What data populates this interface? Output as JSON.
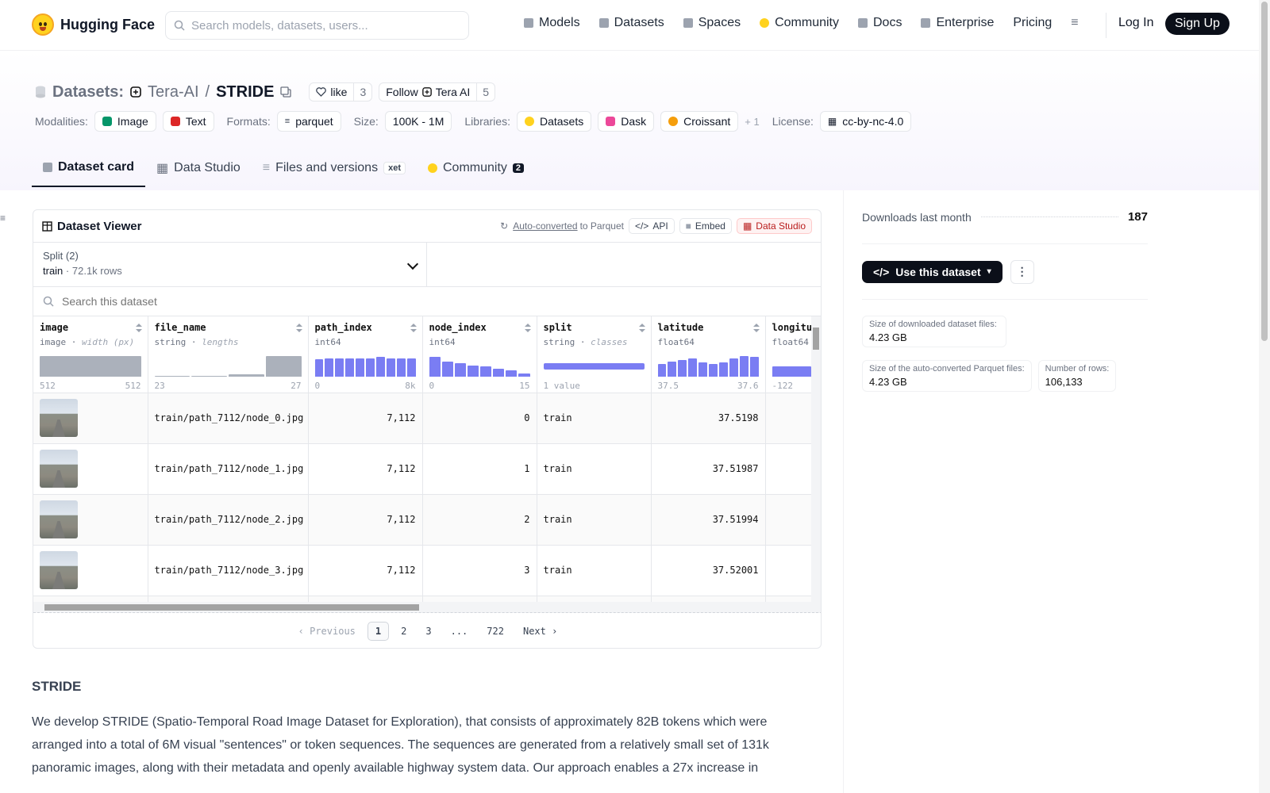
{
  "nav": {
    "brand": "Hugging Face",
    "search_placeholder": "Search models, datasets, users...",
    "links": [
      "Models",
      "Datasets",
      "Spaces",
      "Community",
      "Docs",
      "Enterprise",
      "Pricing"
    ],
    "login": "Log In",
    "signup": "Sign Up"
  },
  "repo": {
    "type_label": "Datasets:",
    "owner": "Tera-AI",
    "sep": "/",
    "name": "STRIDE",
    "like_label": "like",
    "like_count": "3",
    "follow_label": "Follow",
    "follow_org": "Tera AI",
    "follow_count": "5"
  },
  "meta": {
    "modalities_label": "Modalities:",
    "modalities": [
      "Image",
      "Text"
    ],
    "formats_label": "Formats:",
    "format": "parquet",
    "size_label": "Size:",
    "size": "100K - 1M",
    "libraries_label": "Libraries:",
    "libraries": [
      "Datasets",
      "Dask",
      "Croissant"
    ],
    "libraries_more": "+ 1",
    "license_label": "License:",
    "license": "cc-by-nc-4.0"
  },
  "tabs": [
    {
      "label": "Dataset card",
      "active": true
    },
    {
      "label": "Data Studio"
    },
    {
      "label": "Files and versions",
      "badge": "xet"
    },
    {
      "label": "Community",
      "badge": "2"
    }
  ],
  "viewer": {
    "title": "Dataset Viewer",
    "auto_converted": "Auto-converted",
    "to_parquet": "to Parquet",
    "api": "API",
    "embed": "Embed",
    "data_studio": "Data Studio",
    "split_label": "Split (2)",
    "split_value": "train",
    "split_rows": "72.1k rows",
    "search_placeholder": "Search this dataset",
    "columns": [
      {
        "name": "image",
        "type": "image",
        "note": "width (px)",
        "min": "512",
        "max": "512",
        "hist": [
          1.0
        ],
        "gray": true
      },
      {
        "name": "file_name",
        "type": "string",
        "note": "lengths",
        "min": "23",
        "max": "27",
        "hist": [
          0.05,
          0.05,
          0.1,
          1.0
        ],
        "gray": true
      },
      {
        "name": "path_index",
        "type": "int64",
        "note": "",
        "min": "0",
        "max": "8k",
        "hist": [
          0.85,
          0.9,
          0.9,
          0.9,
          0.9,
          0.9,
          0.95,
          0.9,
          0.9,
          0.9
        ]
      },
      {
        "name": "node_index",
        "type": "int64",
        "note": "",
        "min": "0",
        "max": "15",
        "hist": [
          0.95,
          0.75,
          0.65,
          0.55,
          0.5,
          0.4,
          0.3,
          0.15
        ]
      },
      {
        "name": "split",
        "type": "string",
        "note": "classes",
        "min": "1 value",
        "max": "",
        "hist": [
          0.3
        ]
      },
      {
        "name": "latitude",
        "type": "float64",
        "note": "",
        "min": "37.5",
        "max": "37.6",
        "hist": [
          0.6,
          0.75,
          0.8,
          0.9,
          0.7,
          0.6,
          0.7,
          0.9,
          1.0,
          0.95
        ]
      },
      {
        "name": "longitude",
        "type": "float64",
        "note": "",
        "min": "-122",
        "max": "",
        "hist": [
          0.5,
          0.75
        ]
      }
    ],
    "rows": [
      {
        "file_name": "train/path_7112/node_0.jpg",
        "path_index": "7,112",
        "node_index": "0",
        "split": "train",
        "latitude": "37.5198"
      },
      {
        "file_name": "train/path_7112/node_1.jpg",
        "path_index": "7,112",
        "node_index": "1",
        "split": "train",
        "latitude": "37.51987"
      },
      {
        "file_name": "train/path_7112/node_2.jpg",
        "path_index": "7,112",
        "node_index": "2",
        "split": "train",
        "latitude": "37.51994"
      },
      {
        "file_name": "train/path_7112/node_3.jpg",
        "path_index": "7,112",
        "node_index": "3",
        "split": "train",
        "latitude": "37.52001"
      }
    ],
    "pager": {
      "prev": "Previous",
      "pages": [
        "1",
        "2",
        "3",
        "...",
        "722"
      ],
      "next": "Next",
      "current": "1"
    }
  },
  "readme": {
    "title": "STRIDE",
    "body": "We develop STRIDE (Spatio-Temporal Road Image Dataset for Exploration), that consists of approximately 82B tokens which were arranged into a total of 6M visual \"sentences\" or token sequences. The sequences are generated from a relatively small set of 131k panoramic images, along with their metadata and openly available highway system data. Our approach enables a 27x increase in"
  },
  "sidebar": {
    "downloads_label": "Downloads last month",
    "downloads_value": "187",
    "use_button": "Use this dataset",
    "stats": [
      {
        "k": "Size of downloaded dataset files:",
        "v": "4.23 GB"
      },
      {
        "k": "Size of the auto-converted Parquet files:",
        "v": "4.23 GB"
      },
      {
        "k": "Number of rows:",
        "v": "106,133"
      }
    ]
  },
  "colors": {
    "accent": "#6366f1",
    "dark_button": "#0b0f19",
    "brand_yellow": "#FFD21E"
  }
}
